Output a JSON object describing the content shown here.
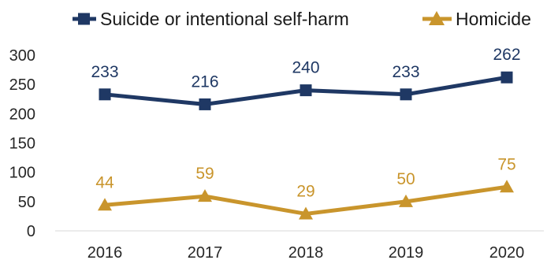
{
  "chart_data": {
    "type": "line",
    "categories": [
      "2016",
      "2017",
      "2018",
      "2019",
      "2020"
    ],
    "series": [
      {
        "name": "Suicide or intentional self-harm",
        "values": [
          233,
          216,
          240,
          233,
          262
        ],
        "color": "#1f3864",
        "marker": "square"
      },
      {
        "name": "Homicide",
        "values": [
          44,
          59,
          29,
          50,
          75
        ],
        "color": "#c9952c",
        "marker": "triangle"
      }
    ],
    "ylim": [
      0,
      300
    ],
    "yticks": [
      "0",
      "50",
      "100",
      "150",
      "200",
      "250",
      "300"
    ],
    "legend_position": "top",
    "grid": false
  }
}
